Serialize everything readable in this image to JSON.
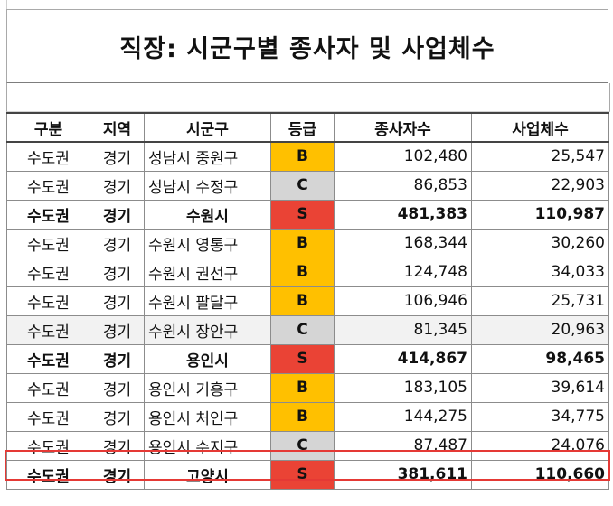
{
  "title": "직장: 시군구별 종사자 및 사업체수",
  "table": {
    "headers": [
      "구분",
      "지역",
      "시군구",
      "등급",
      "종사자수",
      "사업체수"
    ],
    "rows": [
      {
        "category": "수도권",
        "region": "경기",
        "district": "성남시 중원구",
        "grade": "B",
        "workers": "102,480",
        "businesses": "25,547",
        "bold": false,
        "shaded": false
      },
      {
        "category": "수도권",
        "region": "경기",
        "district": "성남시 수정구",
        "grade": "C",
        "workers": "86,853",
        "businesses": "22,903",
        "bold": false,
        "shaded": false
      },
      {
        "category": "수도권",
        "region": "경기",
        "district": "수원시",
        "grade": "S",
        "workers": "481,383",
        "businesses": "110,987",
        "bold": true,
        "shaded": false
      },
      {
        "category": "수도권",
        "region": "경기",
        "district": "수원시 영통구",
        "grade": "B",
        "workers": "168,344",
        "businesses": "30,260",
        "bold": false,
        "shaded": false
      },
      {
        "category": "수도권",
        "region": "경기",
        "district": "수원시 권선구",
        "grade": "B",
        "workers": "124,748",
        "businesses": "34,033",
        "bold": false,
        "shaded": false
      },
      {
        "category": "수도권",
        "region": "경기",
        "district": "수원시 팔달구",
        "grade": "B",
        "workers": "106,946",
        "businesses": "25,731",
        "bold": false,
        "shaded": false
      },
      {
        "category": "수도권",
        "region": "경기",
        "district": "수원시 장안구",
        "grade": "C",
        "workers": "81,345",
        "businesses": "20,963",
        "bold": false,
        "shaded": true
      },
      {
        "category": "수도권",
        "region": "경기",
        "district": "용인시",
        "grade": "S",
        "workers": "414,867",
        "businesses": "98,465",
        "bold": true,
        "shaded": false
      },
      {
        "category": "수도권",
        "region": "경기",
        "district": "용인시 기흥구",
        "grade": "B",
        "workers": "183,105",
        "businesses": "39,614",
        "bold": false,
        "shaded": false
      },
      {
        "category": "수도권",
        "region": "경기",
        "district": "용인시 처인구",
        "grade": "B",
        "workers": "144,275",
        "businesses": "34,775",
        "bold": false,
        "shaded": false
      },
      {
        "category": "수도권",
        "region": "경기",
        "district": "용인시 수지구",
        "grade": "C",
        "workers": "87,487",
        "businesses": "24,076",
        "bold": false,
        "shaded": false,
        "highlighted": true
      },
      {
        "category": "수도권",
        "region": "경기",
        "district": "고양시",
        "grade": "S",
        "workers": "381,611",
        "businesses": "110,660",
        "bold": true,
        "shaded": false
      }
    ]
  },
  "colors": {
    "grade_S": "#ea4335",
    "grade_B": "#ffc000",
    "grade_C": "#d5d5d5",
    "highlight_border": "#e53935"
  }
}
